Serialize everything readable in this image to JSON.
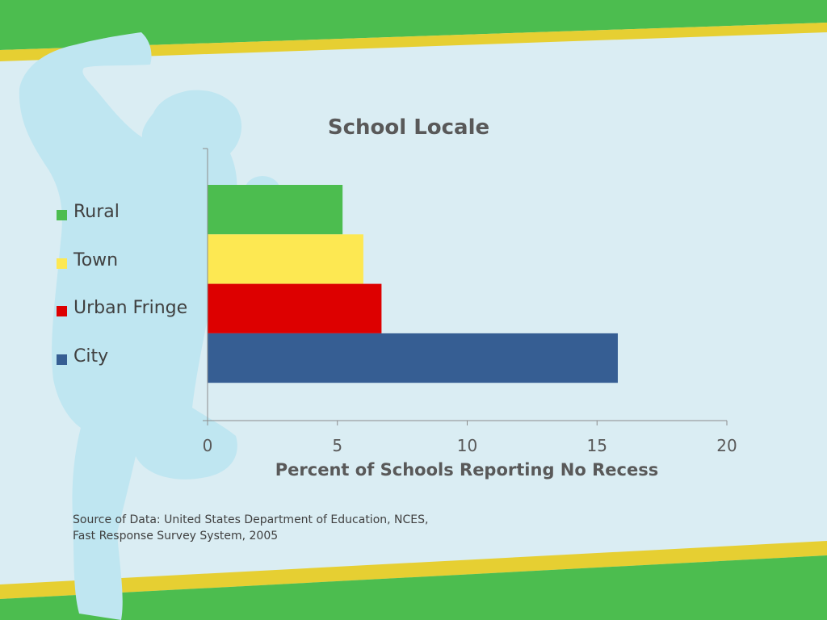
{
  "slide": {
    "source_lines": [
      "Source of Data: United States Department of Education, NCES,",
      "Fast Response Survey System, 2005"
    ]
  },
  "chart_data": {
    "type": "bar",
    "orientation": "horizontal",
    "title": "School Locale",
    "xlabel": "Percent of Schools Reporting No Recess",
    "ylabel": "",
    "categories": [
      "Rural",
      "Town",
      "Urban Fringe",
      "City"
    ],
    "values": [
      5.2,
      6.0,
      6.7,
      15.8
    ],
    "colors": [
      "#4cbd4f",
      "#fde852",
      "#dd0000",
      "#365e93"
    ],
    "xlim": [
      0,
      20
    ],
    "xticks": [
      0,
      5,
      10,
      15,
      20
    ],
    "grid": false,
    "legend": {
      "position": "left",
      "entries": [
        "Rural",
        "Town",
        "Urban Fringe",
        "City"
      ]
    }
  },
  "theme": {
    "background": "#daedf3",
    "band_green": "#4cbd4f",
    "band_yellow": "#e6cf32",
    "silhouette": "#bfe6f1",
    "axis_color": "#8c8c8c",
    "text_color": "#595959"
  }
}
